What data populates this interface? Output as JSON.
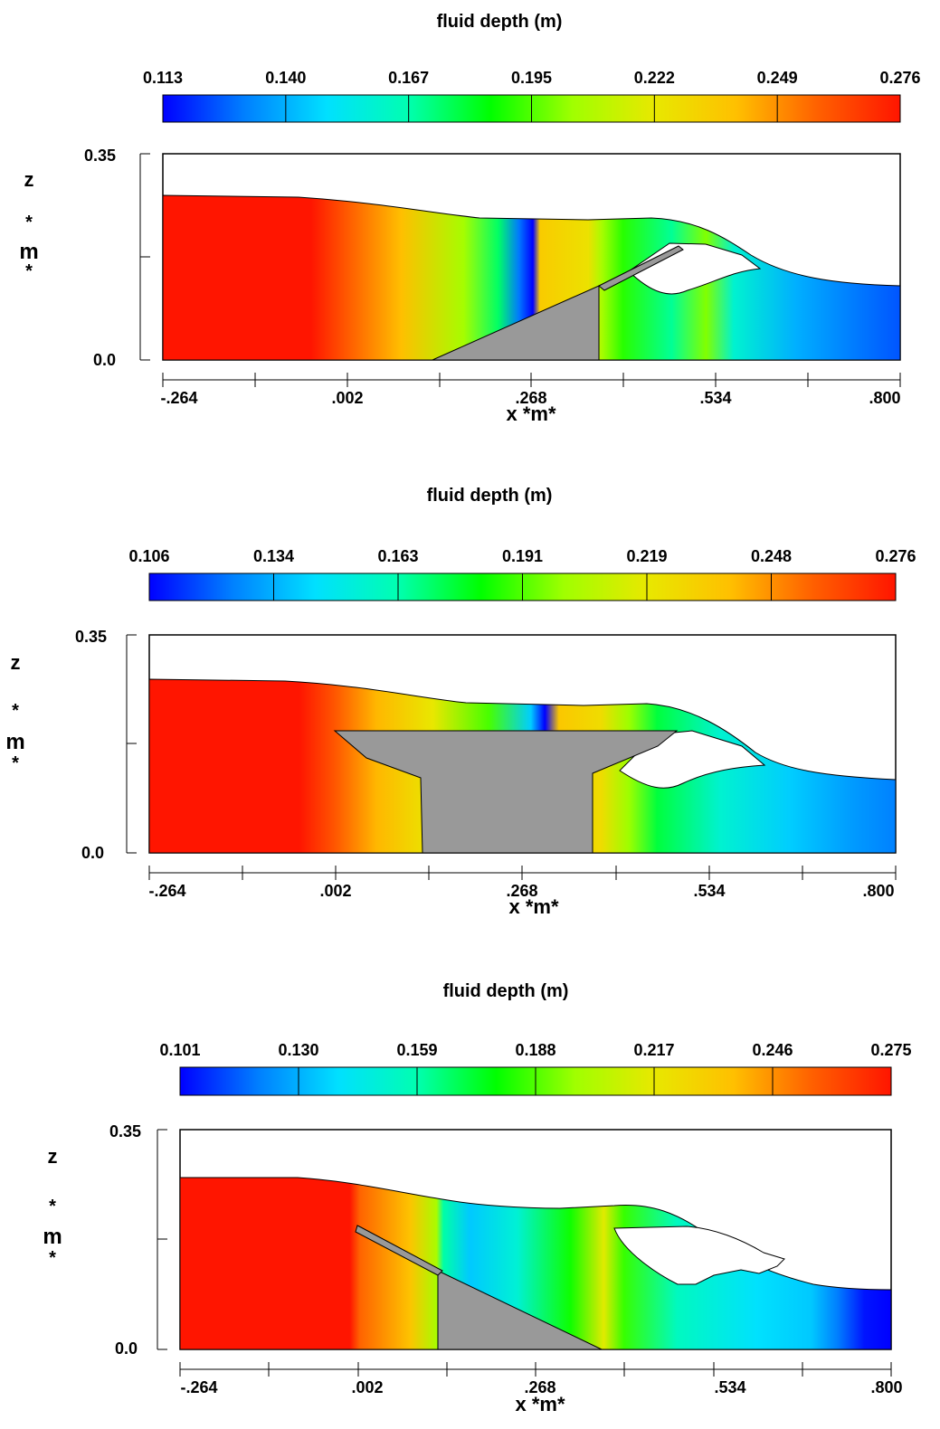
{
  "chart_data": [
    {
      "type": "heatmap",
      "title": "fluid depth (m)",
      "colorbar": {
        "ticks": [
          "0.113",
          "0.140",
          "0.167",
          "0.195",
          "0.222",
          "0.249",
          "0.276"
        ],
        "range": [
          0.113,
          0.276
        ]
      },
      "ylabel": "z *m*",
      "xlabel": "x *m*",
      "y_ticks": [
        "0.35",
        "0.0"
      ],
      "ylim": [
        0.0,
        0.35
      ],
      "x_ticks": [
        "-.264",
        ".002",
        ".268",
        ".534",
        ".800"
      ],
      "xlim": [
        -0.264,
        0.8
      ],
      "free_surface": [
        [
          -0.264,
          0.235
        ],
        [
          -0.05,
          0.233
        ],
        [
          0.07,
          0.225
        ],
        [
          0.22,
          0.215
        ],
        [
          0.3,
          0.212
        ],
        [
          0.38,
          0.213
        ],
        [
          0.47,
          0.21
        ],
        [
          0.52,
          0.19
        ],
        [
          0.56,
          0.16
        ],
        [
          0.61,
          0.145
        ],
        [
          0.68,
          0.135
        ],
        [
          0.8,
          0.127
        ]
      ],
      "depth_profile": [
        [
          -0.264,
          0.276
        ],
        [
          -0.05,
          0.276
        ],
        [
          0.0,
          0.26
        ],
        [
          0.08,
          0.24
        ],
        [
          0.17,
          0.205
        ],
        [
          0.22,
          0.175
        ],
        [
          0.25,
          0.13
        ],
        [
          0.27,
          0.113
        ],
        [
          0.28,
          0.235
        ],
        [
          0.35,
          0.225
        ],
        [
          0.37,
          0.205
        ],
        [
          0.4,
          0.19
        ],
        [
          0.47,
          0.17
        ],
        [
          0.52,
          0.2
        ],
        [
          0.56,
          0.16
        ],
        [
          0.65,
          0.14
        ],
        [
          0.74,
          0.13
        ],
        [
          0.8,
          0.125
        ]
      ],
      "obstacle": "inclined plate with support",
      "background_color": "#ffffff"
    },
    {
      "type": "heatmap",
      "title": "fluid depth (m)",
      "colorbar": {
        "ticks": [
          "0.106",
          "0.134",
          "0.163",
          "0.191",
          "0.219",
          "0.248",
          "0.276"
        ],
        "range": [
          0.106,
          0.276
        ]
      },
      "ylabel": "z *m*",
      "xlabel": "x *m*",
      "y_ticks": [
        "0.35",
        "0.0"
      ],
      "ylim": [
        0.0,
        0.35
      ],
      "x_ticks": [
        "-.264",
        ".002",
        ".268",
        ".534",
        ".800"
      ],
      "xlim": [
        -0.264,
        0.8
      ],
      "free_surface": [
        [
          -0.264,
          0.28
        ],
        [
          -0.05,
          0.277
        ],
        [
          0.07,
          0.258
        ],
        [
          0.22,
          0.245
        ],
        [
          0.35,
          0.246
        ],
        [
          0.44,
          0.25
        ],
        [
          0.5,
          0.24
        ],
        [
          0.56,
          0.2
        ],
        [
          0.6,
          0.163
        ],
        [
          0.68,
          0.135
        ],
        [
          0.8,
          0.125
        ]
      ],
      "depth_profile": [
        [
          -0.264,
          0.276
        ],
        [
          -0.05,
          0.276
        ],
        [
          0.0,
          0.26
        ],
        [
          0.06,
          0.24
        ],
        [
          0.14,
          0.22
        ],
        [
          0.22,
          0.19
        ],
        [
          0.28,
          0.14
        ],
        [
          0.3,
          0.106
        ],
        [
          0.32,
          0.235
        ],
        [
          0.38,
          0.225
        ],
        [
          0.42,
          0.2
        ],
        [
          0.46,
          0.175
        ],
        [
          0.55,
          0.155
        ],
        [
          0.65,
          0.14
        ],
        [
          0.74,
          0.13
        ],
        [
          0.8,
          0.125
        ]
      ],
      "obstacle": "trapezoidal pier",
      "background_color": "#ffffff"
    },
    {
      "type": "heatmap",
      "title": "fluid depth (m)",
      "colorbar": {
        "ticks": [
          "0.101",
          "0.130",
          "0.159",
          "0.188",
          "0.217",
          "0.246",
          "0.275"
        ],
        "range": [
          0.101,
          0.275
        ]
      },
      "ylabel": "z *m*",
      "xlabel": "x *m*",
      "y_ticks": [
        "0.35",
        "0.0"
      ],
      "ylim": [
        0.0,
        0.35
      ],
      "x_ticks": [
        "-.264",
        ".002",
        ".268",
        ".534",
        ".800"
      ],
      "xlim": [
        -0.264,
        0.8
      ],
      "free_surface": [
        [
          -0.264,
          0.305
        ],
        [
          -0.05,
          0.3
        ],
        [
          0.05,
          0.285
        ],
        [
          0.15,
          0.258
        ],
        [
          0.3,
          0.25
        ],
        [
          0.35,
          0.252
        ],
        [
          0.4,
          0.255
        ],
        [
          0.45,
          0.24
        ],
        [
          0.5,
          0.205
        ],
        [
          0.55,
          0.17
        ],
        [
          0.6,
          0.135
        ],
        [
          0.68,
          0.12
        ],
        [
          0.8,
          0.1
        ]
      ],
      "depth_profile": [
        [
          -0.264,
          0.275
        ],
        [
          -0.01,
          0.275
        ],
        [
          0.005,
          0.255
        ],
        [
          0.08,
          0.235
        ],
        [
          0.12,
          0.2
        ],
        [
          0.13,
          0.16
        ],
        [
          0.17,
          0.135
        ],
        [
          0.24,
          0.15
        ],
        [
          0.32,
          0.18
        ],
        [
          0.37,
          0.215
        ],
        [
          0.4,
          0.185
        ],
        [
          0.48,
          0.155
        ],
        [
          0.6,
          0.14
        ],
        [
          0.68,
          0.135
        ],
        [
          0.72,
          0.12
        ],
        [
          0.76,
          0.104
        ],
        [
          0.8,
          0.101
        ]
      ],
      "obstacle": "inclined plate with support",
      "background_color": "#ffffff"
    }
  ],
  "colors": {
    "colormap": [
      "#0000ff",
      "#0080ff",
      "#00e0ff",
      "#00ffb0",
      "#00ff00",
      "#a0ff00",
      "#e8e800",
      "#ffc000",
      "#ff6000",
      "#ff1500"
    ],
    "obstacle": "#999999",
    "outline": "#000000",
    "background": "#ffffff"
  }
}
